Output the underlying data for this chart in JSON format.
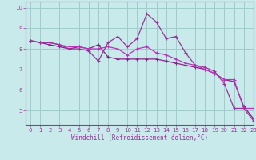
{
  "bg_color": "#c8eaea",
  "grid_color": "#a0cccc",
  "line_color1": "#993399",
  "line_color2": "#bb33bb",
  "line_color3": "#882288",
  "xlabel": "Windchill (Refroidissement éolien,°C)",
  "xlim": [
    -0.5,
    23
  ],
  "ylim": [
    4.3,
    10.3
  ],
  "yticks": [
    5,
    6,
    7,
    8,
    9,
    10
  ],
  "xticks": [
    0,
    1,
    2,
    3,
    4,
    5,
    6,
    7,
    8,
    9,
    10,
    11,
    12,
    13,
    14,
    15,
    16,
    17,
    18,
    19,
    20,
    21,
    22,
    23
  ],
  "series1_x": [
    0,
    1,
    2,
    3,
    4,
    5,
    6,
    7,
    8,
    9,
    10,
    11,
    12,
    13,
    14,
    15,
    16,
    17,
    18,
    19,
    20,
    21,
    22,
    23
  ],
  "series1_y": [
    8.4,
    8.3,
    8.3,
    8.2,
    8.0,
    8.0,
    7.9,
    7.4,
    8.3,
    8.6,
    8.1,
    8.5,
    9.7,
    9.3,
    8.5,
    8.6,
    7.8,
    7.2,
    7.1,
    6.9,
    6.3,
    5.1,
    5.1,
    4.5
  ],
  "series2_x": [
    0,
    1,
    2,
    3,
    4,
    5,
    6,
    7,
    8,
    9,
    10,
    11,
    12,
    13,
    14,
    15,
    16,
    17,
    18,
    19,
    20,
    21,
    22,
    23
  ],
  "series2_y": [
    8.4,
    8.3,
    8.3,
    8.2,
    8.1,
    8.1,
    8.0,
    8.0,
    8.1,
    8.0,
    7.7,
    8.0,
    8.1,
    7.8,
    7.7,
    7.5,
    7.3,
    7.2,
    7.0,
    6.8,
    6.5,
    6.5,
    5.1,
    5.1
  ],
  "series3_x": [
    0,
    1,
    2,
    3,
    4,
    5,
    6,
    7,
    8,
    9,
    10,
    11,
    12,
    13,
    14,
    15,
    16,
    17,
    18,
    19,
    20,
    21,
    22,
    23
  ],
  "series3_y": [
    8.4,
    8.3,
    8.2,
    8.1,
    8.0,
    8.1,
    8.0,
    8.2,
    7.6,
    7.5,
    7.5,
    7.5,
    7.5,
    7.5,
    7.4,
    7.3,
    7.2,
    7.1,
    7.0,
    6.8,
    6.5,
    6.4,
    5.2,
    4.6
  ],
  "marker": "+"
}
